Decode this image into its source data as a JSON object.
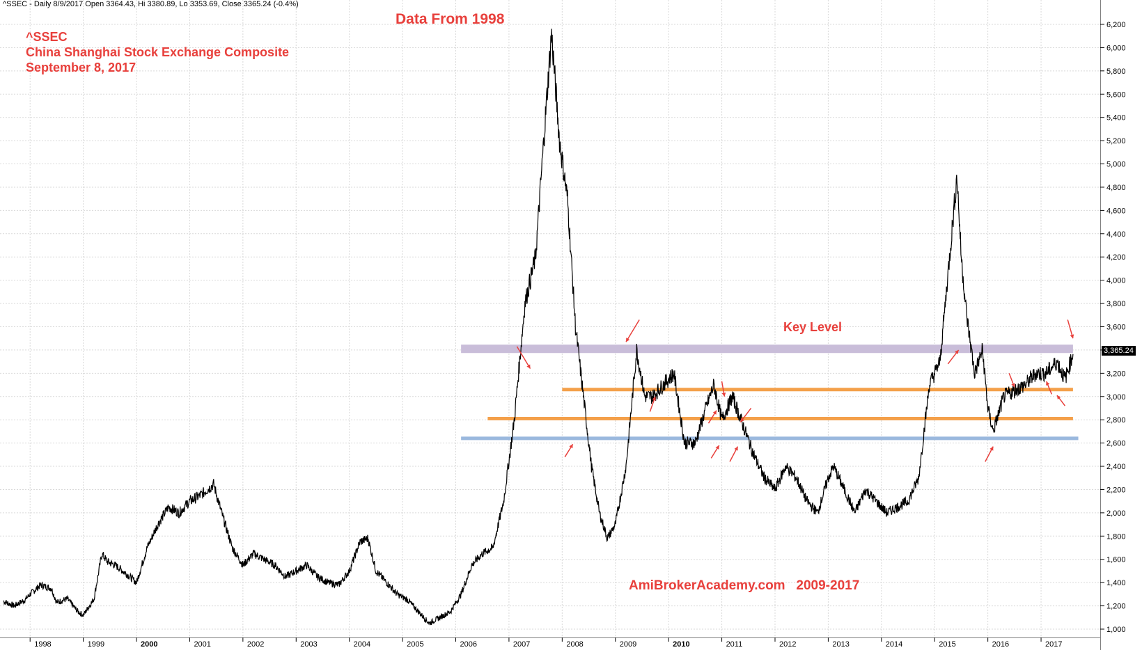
{
  "header": {
    "status_line": "^SSEC - Daily 8/9/2017 Open 3364.43, Hi 3380.89, Lo 3353.69, Close 3365.24 (-0.4%)"
  },
  "title": {
    "ticker": "^SSEC",
    "name": "China Shanghai Stock Exchange Composite",
    "date": "September 8, 2017"
  },
  "annotations": {
    "data_from": "Data From 1998",
    "key_level": "Key Level",
    "watermark": "AmiBrokerAcademy.com   2009-2017",
    "last_value_label": "3,365.24"
  },
  "colors": {
    "price_line": "#000000",
    "key_level_band": "#c9bdd9",
    "orange_line": "#f4a04a",
    "blue_line": "#9ab8de",
    "arrow": "#e8403c",
    "grid": "#d9d9d9"
  },
  "chart_data": {
    "type": "line",
    "title": "China Shanghai Stock Exchange Composite",
    "x_range": [
      "1997-06",
      "2017-12"
    ],
    "ylim": [
      900,
      6300
    ],
    "yticks": [
      1000,
      1200,
      1400,
      1600,
      1800,
      2000,
      2200,
      2400,
      2600,
      2800,
      3000,
      3200,
      3400,
      3600,
      3800,
      4000,
      4200,
      4400,
      4600,
      4800,
      5000,
      5200,
      5400,
      5600,
      5800,
      6000,
      6200
    ],
    "ytick_labels": [
      "1,000",
      "1,200",
      "1,400",
      "1,600",
      "1,800",
      "2,000",
      "2,200",
      "2,400",
      "2,600",
      "2,800",
      "3,000",
      "3,200",
      "3,400",
      "3,600",
      "3,800",
      "4,000",
      "4,200",
      "4,400",
      "4,600",
      "4,800",
      "5,000",
      "5,200",
      "5,400",
      "5,600",
      "5,800",
      "6,000",
      "6,200"
    ],
    "year_ticks": [
      "1998",
      "1999",
      "2000",
      "2001",
      "2002",
      "2003",
      "2004",
      "2005",
      "2006",
      "2007",
      "2008",
      "2009",
      "2010",
      "2011",
      "2012",
      "2013",
      "2014",
      "2015",
      "2016",
      "2017"
    ],
    "bold_years": [
      "2000",
      "2010"
    ],
    "grid": true,
    "series": [
      {
        "x": [
          1997.5,
          1997.7,
          1997.9,
          1998.0,
          1998.2,
          1998.4,
          1998.5,
          1998.7,
          1998.9,
          1999.0,
          1999.2,
          1999.35,
          1999.45,
          1999.6,
          1999.8,
          2000.0,
          2000.2,
          2000.4,
          2000.6,
          2000.8,
          2001.0,
          2001.2,
          2001.45,
          2001.6,
          2001.8,
          2002.0,
          2002.2,
          2002.4,
          2002.6,
          2002.8,
          2003.0,
          2003.2,
          2003.4,
          2003.6,
          2003.8,
          2004.0,
          2004.2,
          2004.35,
          2004.5,
          2004.7,
          2004.9,
          2005.1,
          2005.3,
          2005.5,
          2005.7,
          2005.9,
          2006.1,
          2006.3,
          2006.5,
          2006.7,
          2006.9,
          2007.1,
          2007.3,
          2007.5,
          2007.7,
          2007.8,
          2007.95,
          2008.1,
          2008.25,
          2008.4,
          2008.55,
          2008.7,
          2008.85,
          2009.0,
          2009.2,
          2009.4,
          2009.55,
          2009.7,
          2009.9,
          2010.1,
          2010.3,
          2010.5,
          2010.7,
          2010.85,
          2011.0,
          2011.2,
          2011.4,
          2011.6,
          2011.8,
          2012.0,
          2012.2,
          2012.4,
          2012.6,
          2012.8,
          2013.0,
          2013.1,
          2013.3,
          2013.5,
          2013.7,
          2013.9,
          2014.1,
          2014.3,
          2014.5,
          2014.7,
          2014.9,
          2015.1,
          2015.3,
          2015.42,
          2015.5,
          2015.6,
          2015.75,
          2015.9,
          2016.0,
          2016.1,
          2016.3,
          2016.5,
          2016.7,
          2016.9,
          2017.1,
          2017.3,
          2017.45,
          2017.6
        ],
        "values": [
          1240,
          1200,
          1250,
          1300,
          1380,
          1350,
          1230,
          1260,
          1150,
          1120,
          1260,
          1650,
          1580,
          1550,
          1480,
          1400,
          1700,
          1900,
          2050,
          2000,
          2100,
          2150,
          2245,
          2000,
          1700,
          1550,
          1650,
          1600,
          1550,
          1450,
          1500,
          1550,
          1450,
          1400,
          1380,
          1500,
          1750,
          1780,
          1500,
          1400,
          1300,
          1250,
          1150,
          1050,
          1100,
          1150,
          1300,
          1550,
          1650,
          1700,
          2100,
          2800,
          3800,
          4200,
          5500,
          6124,
          5200,
          4700,
          3600,
          3000,
          2400,
          2000,
          1780,
          1900,
          2400,
          3400,
          3000,
          3000,
          3100,
          3200,
          2600,
          2600,
          2900,
          3100,
          2800,
          3000,
          2750,
          2500,
          2300,
          2200,
          2400,
          2300,
          2100,
          2000,
          2300,
          2400,
          2200,
          2000,
          2200,
          2100,
          2000,
          2050,
          2100,
          2300,
          3100,
          3300,
          4300,
          4900,
          4200,
          3700,
          3200,
          3400,
          2900,
          2700,
          3000,
          3050,
          3100,
          3200,
          3200,
          3300,
          3150,
          3365
        ]
      }
    ],
    "horizontal_levels": [
      {
        "value": 3410,
        "from": 2006.1,
        "to": 2017.6,
        "color": "#c9bdd9",
        "label": "Key Level"
      },
      {
        "value": 3060,
        "from": 2008.0,
        "to": 2017.6,
        "color": "#f4a04a"
      },
      {
        "value": 2810,
        "from": 2006.6,
        "to": 2017.6,
        "color": "#f4a04a"
      },
      {
        "value": 2640,
        "from": 2006.1,
        "to": 2017.7,
        "color": "#9ab8de"
      }
    ],
    "last_value": 3365.24
  }
}
